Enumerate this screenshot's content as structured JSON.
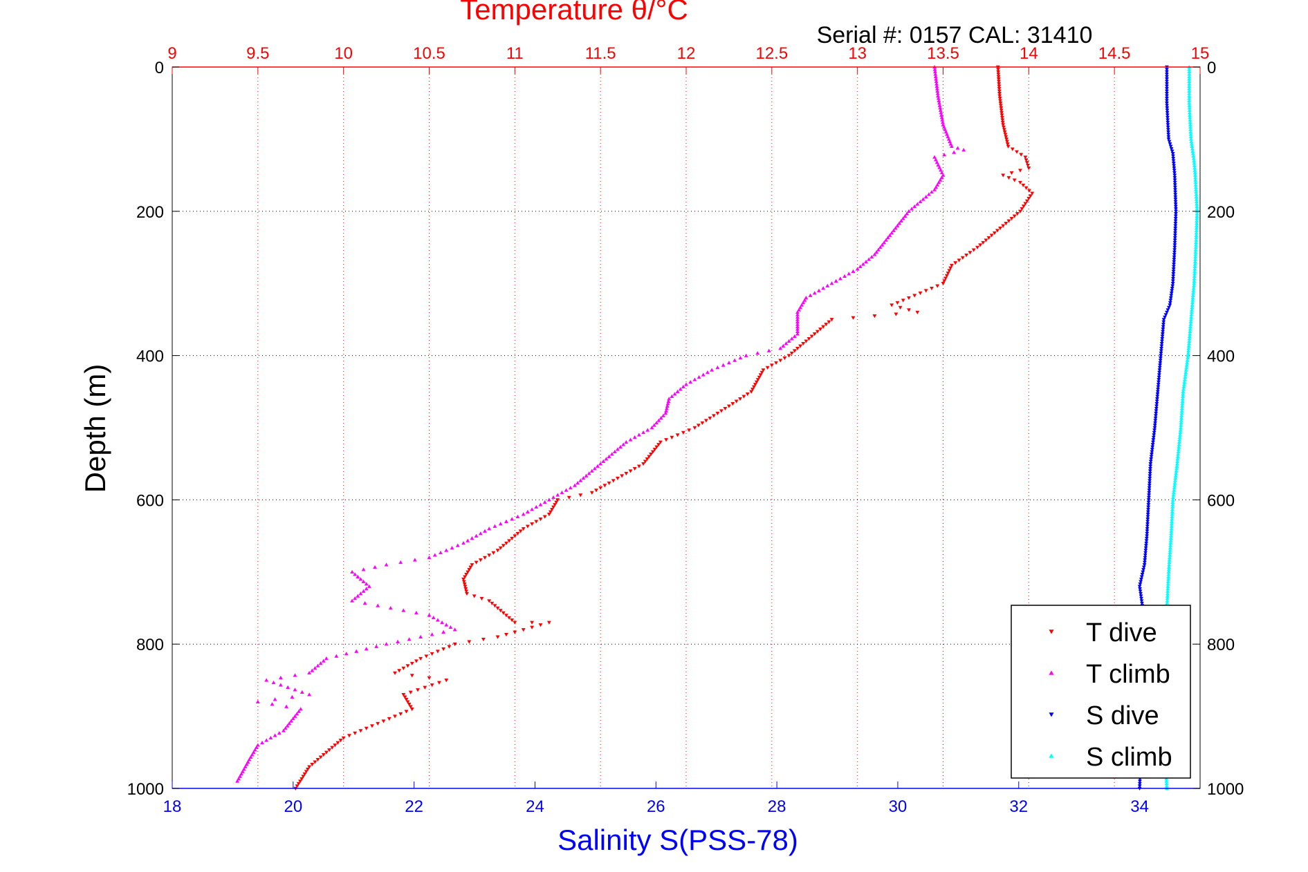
{
  "chart_data": {
    "type": "scatter",
    "title": "Temperature θ/°C",
    "subtitle": "Serial #: 0157  CAL: 31410",
    "ylabel": "Depth (m)",
    "xlabel": "Salinity S(PSS-78)",
    "y_axis": {
      "ylim": [
        0,
        1000
      ],
      "reversed": true,
      "ticks": [
        0,
        200,
        400,
        600,
        800,
        1000
      ]
    },
    "temperature_axis": {
      "position": "top",
      "xlim": [
        9,
        15
      ],
      "ticks": [
        9,
        9.5,
        10,
        10.5,
        11,
        11.5,
        12,
        12.5,
        13,
        13.5,
        14,
        14.5,
        15
      ],
      "tick_labels": [
        "9",
        "9.5",
        "10",
        "10.5",
        "11",
        "11.5",
        "12",
        "12.5",
        "13",
        "13.5",
        "14",
        "14.5",
        "15"
      ],
      "color": "#ff0000"
    },
    "salinity_axis": {
      "position": "bottom",
      "xlim": [
        18,
        35
      ],
      "ticks": [
        18,
        20,
        22,
        24,
        26,
        28,
        30,
        32,
        34
      ],
      "tick_labels": [
        "18",
        "20",
        "22",
        "24",
        "26",
        "28",
        "30",
        "32",
        "34"
      ],
      "color": "#0000ff"
    },
    "grid": true,
    "legend": {
      "placement": "bottom-right"
    },
    "series": [
      {
        "name": "T dive",
        "axis": "temperature",
        "color": "#ff0000",
        "marker": "triangle-down",
        "points": [
          [
            13.82,
            0
          ],
          [
            13.83,
            40
          ],
          [
            13.85,
            80
          ],
          [
            13.88,
            110
          ],
          [
            13.98,
            125
          ],
          [
            14.0,
            140
          ],
          [
            13.85,
            150
          ],
          [
            13.95,
            160
          ],
          [
            14.02,
            175
          ],
          [
            13.95,
            200
          ],
          [
            13.85,
            220
          ],
          [
            13.7,
            250
          ],
          [
            13.55,
            275
          ],
          [
            13.5,
            300
          ],
          [
            13.3,
            320
          ],
          [
            13.2,
            330
          ],
          [
            13.35,
            340
          ],
          [
            13.1,
            345
          ],
          [
            12.85,
            350
          ],
          [
            12.7,
            380
          ],
          [
            12.6,
            400
          ],
          [
            12.45,
            420
          ],
          [
            12.38,
            450
          ],
          [
            12.25,
            470
          ],
          [
            12.05,
            500
          ],
          [
            11.85,
            520
          ],
          [
            11.75,
            550
          ],
          [
            11.6,
            570
          ],
          [
            11.45,
            590
          ],
          [
            11.25,
            600
          ],
          [
            11.2,
            620
          ],
          [
            11.05,
            640
          ],
          [
            10.9,
            670
          ],
          [
            10.75,
            690
          ],
          [
            10.7,
            710
          ],
          [
            10.72,
            730
          ],
          [
            10.85,
            740
          ],
          [
            11.0,
            770
          ],
          [
            11.2,
            770
          ],
          [
            10.9,
            790
          ],
          [
            10.65,
            800
          ],
          [
            10.45,
            820
          ],
          [
            10.3,
            840
          ],
          [
            10.6,
            850
          ],
          [
            10.35,
            870
          ],
          [
            10.4,
            890
          ],
          [
            10.2,
            910
          ],
          [
            10.0,
            930
          ],
          [
            9.9,
            950
          ],
          [
            9.8,
            970
          ],
          [
            9.72,
            1000
          ]
        ]
      },
      {
        "name": "T climb",
        "axis": "temperature",
        "color": "#ff00ff",
        "marker": "triangle-up",
        "points": [
          [
            13.45,
            0
          ],
          [
            13.47,
            40
          ],
          [
            13.5,
            80
          ],
          [
            13.55,
            110
          ],
          [
            13.62,
            115
          ],
          [
            13.45,
            125
          ],
          [
            13.5,
            150
          ],
          [
            13.45,
            170
          ],
          [
            13.3,
            200
          ],
          [
            13.2,
            230
          ],
          [
            13.1,
            260
          ],
          [
            13.0,
            280
          ],
          [
            12.85,
            300
          ],
          [
            12.7,
            320
          ],
          [
            12.65,
            340
          ],
          [
            12.65,
            370
          ],
          [
            12.55,
            390
          ],
          [
            12.35,
            400
          ],
          [
            12.15,
            420
          ],
          [
            12.0,
            440
          ],
          [
            11.9,
            460
          ],
          [
            11.88,
            480
          ],
          [
            11.8,
            500
          ],
          [
            11.65,
            520
          ],
          [
            11.55,
            540
          ],
          [
            11.45,
            560
          ],
          [
            11.35,
            580
          ],
          [
            11.2,
            600
          ],
          [
            11.05,
            620
          ],
          [
            10.85,
            640
          ],
          [
            10.7,
            660
          ],
          [
            10.5,
            680
          ],
          [
            10.25,
            690
          ],
          [
            10.05,
            700
          ],
          [
            10.15,
            720
          ],
          [
            10.05,
            740
          ],
          [
            10.5,
            760
          ],
          [
            10.65,
            780
          ],
          [
            10.25,
            800
          ],
          [
            9.9,
            820
          ],
          [
            9.8,
            840
          ],
          [
            9.55,
            850
          ],
          [
            9.8,
            870
          ],
          [
            9.5,
            880
          ],
          [
            9.75,
            890
          ],
          [
            9.65,
            920
          ],
          [
            9.5,
            940
          ],
          [
            9.45,
            960
          ],
          [
            9.38,
            990
          ]
        ]
      },
      {
        "name": "S dive",
        "axis": "salinity",
        "color": "#0000ff",
        "marker": "triangle-down",
        "points": [
          [
            34.45,
            0
          ],
          [
            34.45,
            50
          ],
          [
            34.48,
            100
          ],
          [
            34.55,
            120
          ],
          [
            34.58,
            150
          ],
          [
            34.6,
            200
          ],
          [
            34.58,
            250
          ],
          [
            34.55,
            300
          ],
          [
            34.5,
            330
          ],
          [
            34.4,
            350
          ],
          [
            34.35,
            400
          ],
          [
            34.3,
            450
          ],
          [
            34.25,
            500
          ],
          [
            34.18,
            550
          ],
          [
            34.15,
            600
          ],
          [
            34.12,
            650
          ],
          [
            34.08,
            690
          ],
          [
            34.0,
            720
          ],
          [
            34.05,
            750
          ],
          [
            33.98,
            800
          ],
          [
            33.95,
            850
          ],
          [
            33.98,
            900
          ],
          [
            34.02,
            950
          ],
          [
            34.0,
            1000
          ]
        ]
      },
      {
        "name": "S climb",
        "axis": "salinity",
        "color": "#00ffff",
        "marker": "triangle-up",
        "points": [
          [
            34.82,
            0
          ],
          [
            34.82,
            50
          ],
          [
            34.85,
            100
          ],
          [
            34.9,
            130
          ],
          [
            34.92,
            150
          ],
          [
            34.95,
            200
          ],
          [
            34.93,
            250
          ],
          [
            34.9,
            300
          ],
          [
            34.85,
            350
          ],
          [
            34.8,
            400
          ],
          [
            34.72,
            450
          ],
          [
            34.68,
            500
          ],
          [
            34.62,
            550
          ],
          [
            34.55,
            600
          ],
          [
            34.52,
            650
          ],
          [
            34.48,
            700
          ],
          [
            34.45,
            750
          ],
          [
            34.42,
            800
          ],
          [
            34.4,
            850
          ],
          [
            34.38,
            900
          ],
          [
            34.42,
            950
          ],
          [
            34.45,
            1000
          ]
        ]
      }
    ]
  }
}
